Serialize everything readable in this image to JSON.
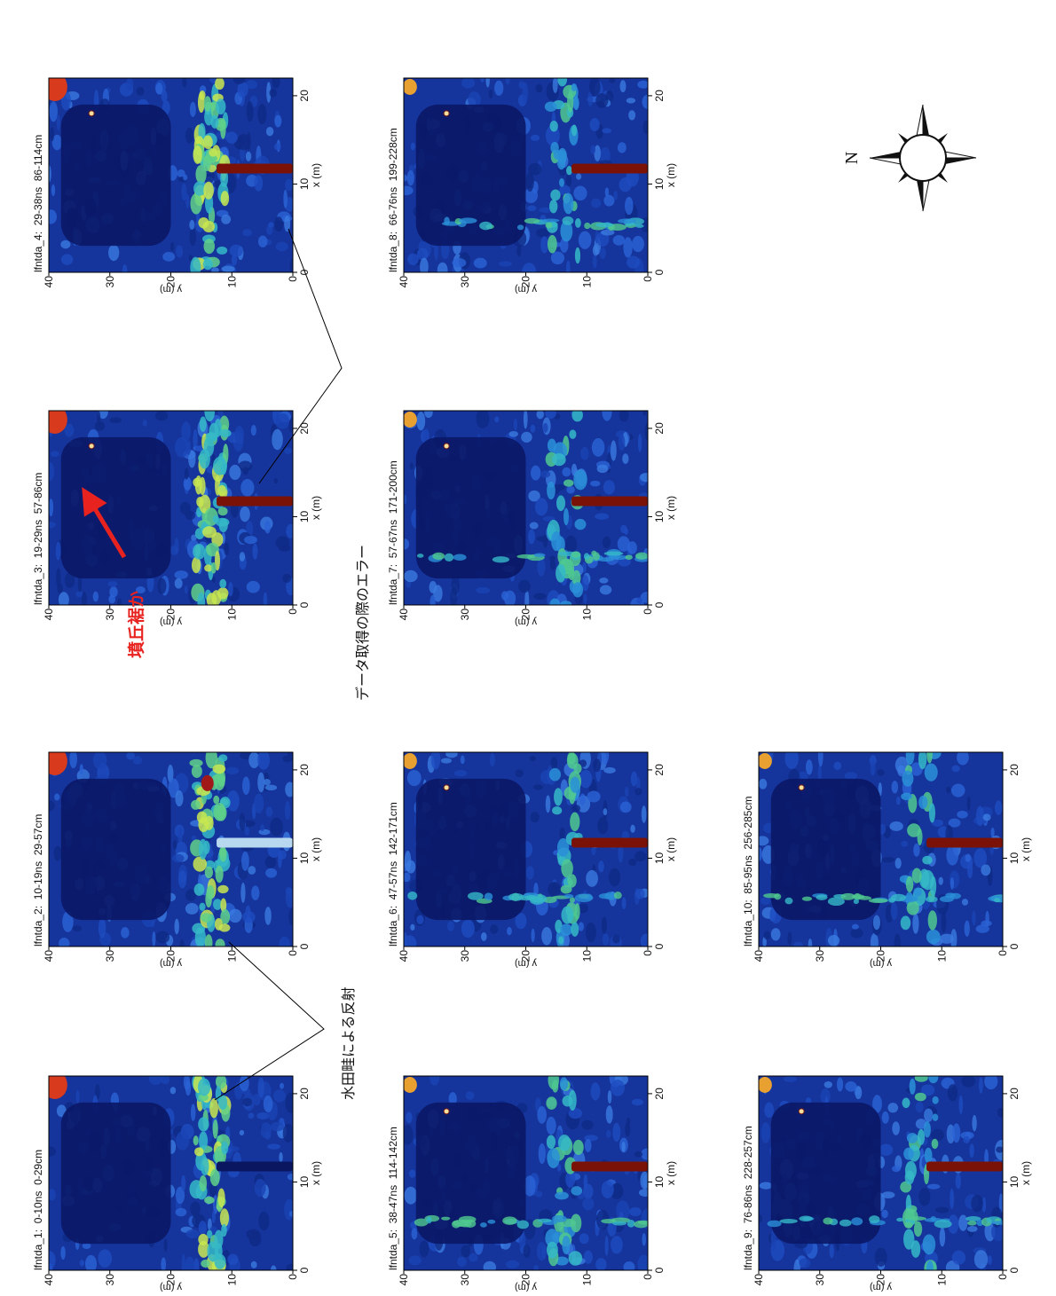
{
  "chart_data": [
    {
      "type": "heatmap",
      "title": "lfntda_1:  0-10ns  0-29cm",
      "xlabel": "x (m)",
      "ylabel": "y (m)",
      "xlim": [
        0,
        22
      ],
      "ylim": [
        0,
        40
      ],
      "xticks": [
        0,
        10,
        20
      ],
      "yticks": [
        0,
        10,
        20,
        30,
        40
      ]
    },
    {
      "type": "heatmap",
      "title": "lfntda_2:  10-19ns  29-57cm",
      "xlabel": "x (m)",
      "ylabel": "y (m)",
      "xlim": [
        0,
        22
      ],
      "ylim": [
        0,
        40
      ],
      "xticks": [
        0,
        10,
        20
      ],
      "yticks": [
        0,
        10,
        20,
        30,
        40
      ]
    },
    {
      "type": "heatmap",
      "title": "lfntda_3:  19-29ns  57-86cm",
      "xlabel": "x (m)",
      "ylabel": "y (m)",
      "xlim": [
        0,
        22
      ],
      "ylim": [
        0,
        40
      ],
      "xticks": [
        0,
        10,
        20
      ],
      "yticks": [
        0,
        10,
        20,
        30,
        40
      ]
    },
    {
      "type": "heatmap",
      "title": "lfntda_4:  29-38ns  86-114cm",
      "xlabel": "x (m)",
      "ylabel": "y (m)",
      "xlim": [
        0,
        22
      ],
      "ylim": [
        0,
        40
      ],
      "xticks": [
        0,
        10,
        20
      ],
      "yticks": [
        0,
        10,
        20,
        30,
        40
      ]
    },
    {
      "type": "heatmap",
      "title": "lfntda_5:  38-47ns  114-142cm",
      "xlabel": "x (m)",
      "ylabel": "y (m)",
      "xlim": [
        0,
        22
      ],
      "ylim": [
        0,
        40
      ],
      "xticks": [
        0,
        10,
        20
      ],
      "yticks": [
        0,
        10,
        20,
        30,
        40
      ]
    },
    {
      "type": "heatmap",
      "title": "lfntda_6:  47-57ns  142-171cm",
      "xlabel": "x (m)",
      "ylabel": "y (m)",
      "xlim": [
        0,
        22
      ],
      "ylim": [
        0,
        40
      ],
      "xticks": [
        0,
        10,
        20
      ],
      "yticks": [
        0,
        10,
        20,
        30,
        40
      ]
    },
    {
      "type": "heatmap",
      "title": "lfntda_7:  57-67ns  171-200cm",
      "xlabel": "x (m)",
      "ylabel": "y (m)",
      "xlim": [
        0,
        22
      ],
      "ylim": [
        0,
        40
      ],
      "xticks": [
        0,
        10,
        20
      ],
      "yticks": [
        0,
        10,
        20,
        30,
        40
      ]
    },
    {
      "type": "heatmap",
      "title": "lfntda_8:  66-76ns  199-228cm",
      "xlabel": "x (m)",
      "ylabel": "y (m)",
      "xlim": [
        0,
        22
      ],
      "ylim": [
        0,
        40
      ],
      "xticks": [
        0,
        10,
        20
      ],
      "yticks": [
        0,
        10,
        20,
        30,
        40
      ]
    },
    {
      "type": "heatmap",
      "title": "lfntda_9:  76-86ns  228-257cm",
      "xlabel": "x (m)",
      "ylabel": "y (m)",
      "xlim": [
        0,
        22
      ],
      "ylim": [
        0,
        40
      ],
      "xticks": [
        0,
        10,
        20
      ],
      "yticks": [
        0,
        10,
        20,
        30,
        40
      ]
    },
    {
      "type": "heatmap",
      "title": "lfntda_10:  85-95ns  256-285cm",
      "xlabel": "x (m)",
      "ylabel": "y (m)",
      "xlim": [
        0,
        22
      ],
      "ylim": [
        0,
        40
      ],
      "xticks": [
        0,
        10,
        20
      ],
      "yticks": [
        0,
        10,
        20,
        30,
        40
      ]
    }
  ],
  "annotations": {
    "paddy_ridge": "水田畦による反射",
    "acquisition_error": "データ取得の際のエラー",
    "mound_edge": "墳丘裾か",
    "compass": "N"
  }
}
